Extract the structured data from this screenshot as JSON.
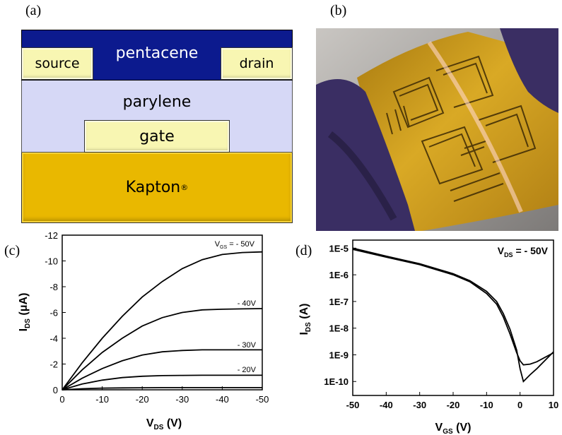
{
  "panels": {
    "a": "(a)",
    "b": "(b)",
    "c": "(c)",
    "d": "(d)"
  },
  "device": {
    "pentacene": "pentacene",
    "source": "source",
    "drain": "drain",
    "parylene": "parylene",
    "gate": "gate",
    "kapton": "Kapton",
    "kapton_mark": "®"
  },
  "chart_data": [
    {
      "type": "line",
      "panel": "c",
      "xlabel_main": "V",
      "xlabel_sub": "DS",
      "xlabel_unit": " (V)",
      "ylabel_main": "I",
      "ylabel_sub": "DS",
      "ylabel_unit": " (μA)",
      "xlim": [
        0,
        -50
      ],
      "ylim": [
        0,
        -12
      ],
      "xticks": [
        0,
        -10,
        -20,
        -30,
        -40,
        -50
      ],
      "yticks": [
        0,
        -2,
        -4,
        -6,
        -8,
        -10,
        -12
      ],
      "x": [
        0,
        -5,
        -10,
        -15,
        -20,
        -25,
        -30,
        -35,
        -40,
        -45,
        -50
      ],
      "series": [
        {
          "name": "VGS = - 50V",
          "values": [
            0,
            -2.1,
            -4.0,
            -5.7,
            -7.2,
            -8.4,
            -9.4,
            -10.1,
            -10.5,
            -10.65,
            -10.7
          ]
        },
        {
          "name": "- 40V",
          "values": [
            0,
            -1.55,
            -2.9,
            -4.0,
            -4.95,
            -5.6,
            -6.0,
            -6.2,
            -6.25,
            -6.28,
            -6.3
          ]
        },
        {
          "name": "- 30V",
          "values": [
            0,
            -0.9,
            -1.65,
            -2.25,
            -2.7,
            -2.95,
            -3.05,
            -3.1,
            -3.1,
            -3.1,
            -3.1
          ]
        },
        {
          "name": "- 20V",
          "values": [
            0,
            -0.45,
            -0.75,
            -0.95,
            -1.05,
            -1.1,
            -1.12,
            -1.13,
            -1.13,
            -1.13,
            -1.13
          ]
        },
        {
          "name": "",
          "values": [
            0,
            -0.08,
            -0.13,
            -0.15,
            -0.16,
            -0.17,
            -0.17,
            -0.17,
            -0.17,
            -0.17,
            -0.17
          ]
        }
      ],
      "annotations": {
        "top_prefix": "V",
        "top_sub": "GS",
        "top_suffix": " = - 50V",
        "l40": "- 40V",
        "l30": "- 30V",
        "l20": "- 20V"
      }
    },
    {
      "type": "line",
      "panel": "d",
      "scale_y": "log",
      "xlabel_main": "V",
      "xlabel_sub": "GS",
      "xlabel_unit": " (V)",
      "ylabel_main": "I",
      "ylabel_sub": "DS",
      "ylabel_unit": " (A)",
      "xlim": [
        -50,
        10
      ],
      "ylim": [
        3e-11,
        2e-05
      ],
      "xticks": [
        -50,
        -40,
        -30,
        -20,
        -10,
        0,
        10
      ],
      "yticks": [
        "1E-5",
        "1E-6",
        "1E-7",
        "1E-8",
        "1E-9",
        "1E-10"
      ],
      "ytick_values": [
        1e-05,
        1e-06,
        1e-07,
        1e-08,
        1e-09,
        1e-10
      ],
      "legend": {
        "prefix": "V",
        "sub": "DS",
        "suffix": " = - 50V"
      },
      "series": [
        {
          "x": [
            -50,
            -40,
            -30,
            -20,
            -15,
            -10,
            -7,
            -5,
            -3,
            -1,
            0,
            1,
            3,
            5,
            10
          ],
          "values": [
            1e-05,
            5e-06,
            2.6e-06,
            1.1e-06,
            6e-07,
            2.4e-07,
            1e-07,
            3.5e-08,
            9e-09,
            1.5e-09,
            3e-10,
            1e-10,
            1.8e-10,
            3e-10,
            1.3e-09
          ]
        },
        {
          "x": [
            -50,
            -40,
            -30,
            -20,
            -15,
            -10,
            -7,
            -5,
            -3,
            -1,
            0,
            1,
            3,
            5,
            10
          ],
          "values": [
            9e-06,
            4.6e-06,
            2.4e-06,
            1e-06,
            5.5e-07,
            2e-07,
            8e-08,
            2.6e-08,
            6e-09,
            1.2e-09,
            6e-10,
            4.2e-10,
            4.5e-10,
            5.5e-10,
            1.2e-09
          ]
        }
      ]
    }
  ]
}
